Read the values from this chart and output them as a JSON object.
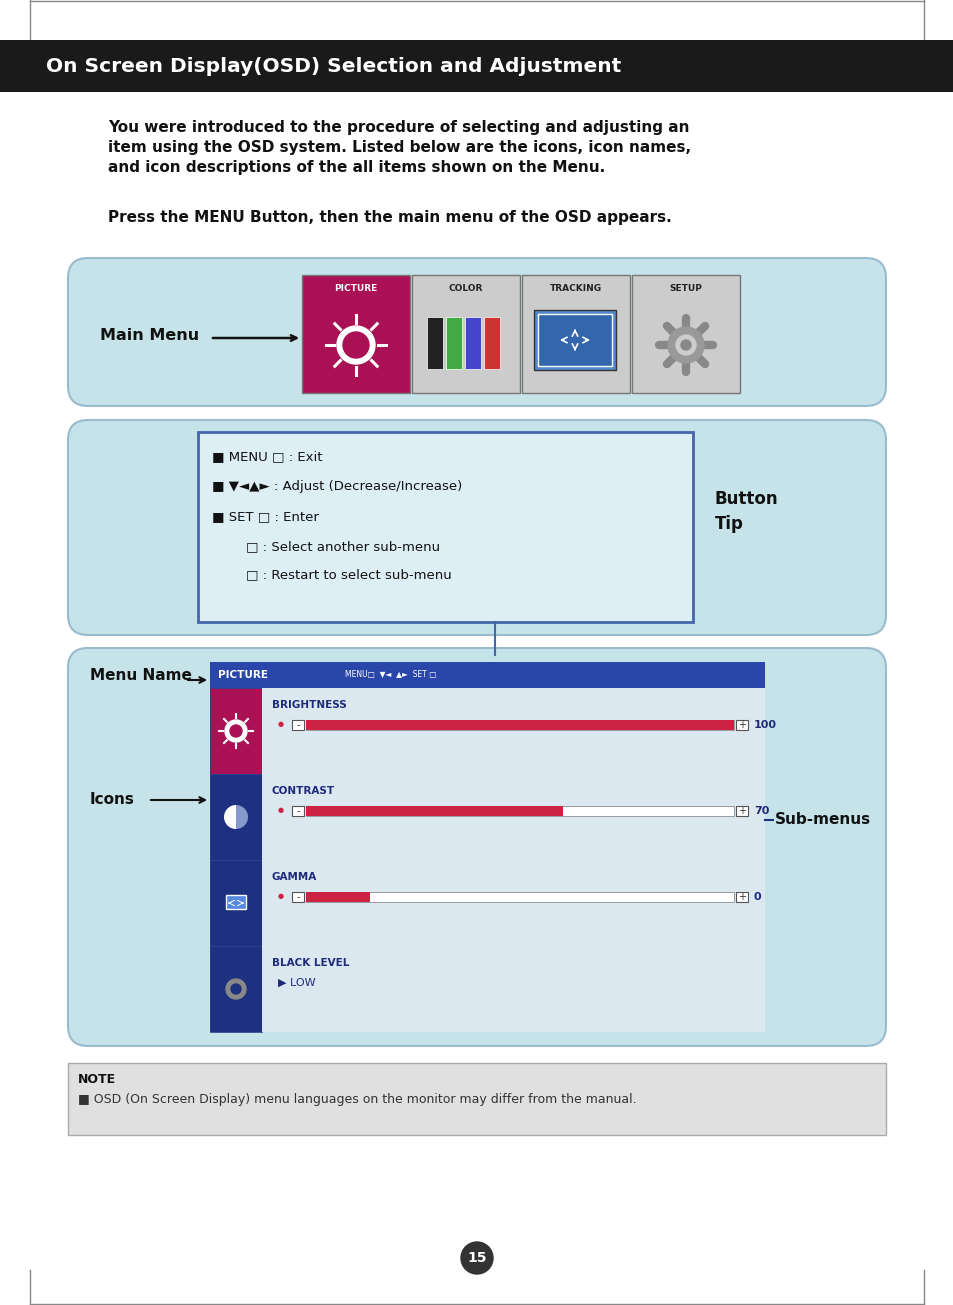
{
  "page_bg": "#ffffff",
  "header_bg": "#1a1a1a",
  "header_text": "On Screen Display(OSD) Selection and Adjustment",
  "header_text_color": "#ffffff",
  "body_text1_line1": "You were introduced to the procedure of selecting and adjusting an",
  "body_text1_line2": "item using the OSD system. Listed below are the icons, icon names,",
  "body_text1_line3": "and icon descriptions of the all items shown on the Menu.",
  "body_text2": "Press the MENU Button, then the main menu of the OSD appears.",
  "panel_bg": "#c5e3e8",
  "main_menu_label": "Main Menu",
  "button_tip_label1": "Button",
  "button_tip_label2": "Tip",
  "menu_name_label": "Menu Name",
  "icons_label": "Icons",
  "submenus_label": "Sub-menus",
  "picture_bg": "#aa1155",
  "picture_label": "PICTURE",
  "color_label": "COLOR",
  "tracking_label": "TRACKING",
  "setup_label": "SETUP",
  "note_bg": "#e0e0e0",
  "note_title": "NOTE",
  "note_text": "■ OSD (On Screen Display) menu languages on the monitor may differ from the manual.",
  "page_number": "15",
  "btn_line1": "■ MENU □ : Exit",
  "btn_line2": "■ ▼◄▲► : Adjust (Decrease/Increase)",
  "btn_line3": "■ SET □ : Enter",
  "btn_line4": "        □ : Select another sub-menu",
  "btn_line5": "        □ : Restart to select sub-menu",
  "submenu_names": [
    "BRIGHTNESS",
    "CONTRAST",
    "GAMMA",
    "BLACK LEVEL"
  ],
  "submenu_values": [
    "100",
    "70",
    "0",
    "LOW"
  ],
  "submenu_fills": [
    1.0,
    0.6,
    0.15,
    -1
  ]
}
